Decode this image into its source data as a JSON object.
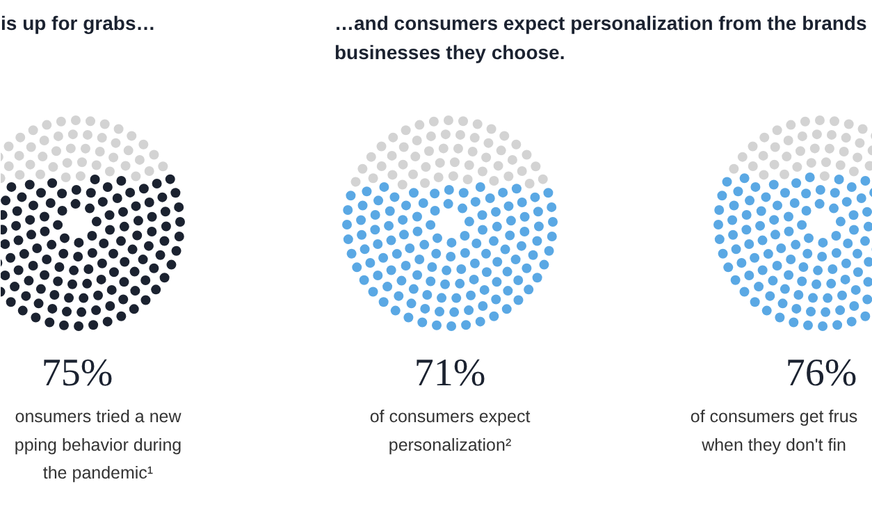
{
  "chart_data": [
    {
      "type": "other",
      "title": "is up for grabs…",
      "values": [
        75
      ],
      "value_labels": [
        "75%"
      ],
      "color": "#1b2230",
      "annotations": [
        "onsumers tried a new\npping behavior during\nthe pandemic¹"
      ]
    },
    {
      "type": "other",
      "title": "…and consumers expect personalization from the brands\nbusinesses they choose.",
      "values": [
        71
      ],
      "value_labels": [
        "71%"
      ],
      "color": "#5aa8e4",
      "annotations": [
        "of consumers expect\npersonalization²"
      ]
    },
    {
      "type": "other",
      "values": [
        76
      ],
      "value_labels": [
        "76%"
      ],
      "color": "#5aa8e4",
      "annotations": [
        "of consumers get frus\nwhen they don't fin"
      ]
    }
  ]
}
